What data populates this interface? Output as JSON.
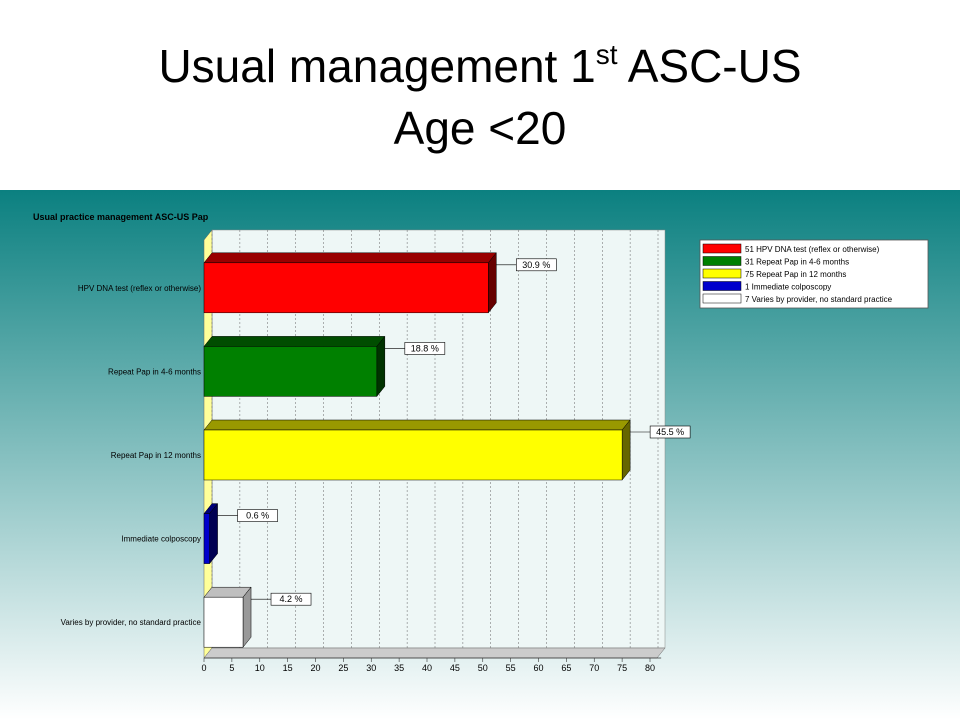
{
  "slide_title": {
    "line1": "Usual management 1",
    "sup": "st",
    "line1_end": " ASC-US",
    "line2": "Age <20"
  },
  "chart_data": {
    "type": "bar",
    "title": "Usual practice management ASC-US Pap",
    "categories": [
      "HPV DNA test (reflex or otherwise)",
      "Repeat Pap in 4-6 months",
      "Repeat Pap in 12 months",
      "Immediate colposcopy",
      "Varies by provider, no standard practice"
    ],
    "values": [
      51,
      31,
      75,
      1,
      7
    ],
    "value_labels": [
      "30.9 %",
      "18.8 %",
      "45.5 %",
      "0.6 %",
      "4.2 %"
    ],
    "colors": [
      "#ff0000",
      "#008000",
      "#ffff00",
      "#0000cc",
      "#ffffff"
    ],
    "legend": [
      "51 HPV DNA test (reflex or otherwise)",
      "31 Repeat Pap in 4-6 months",
      "75 Repeat Pap in 12 months",
      "1 Immediate colposcopy",
      "7 Varies by provider, no standard practice"
    ],
    "xlim": [
      0,
      82
    ],
    "xticks": [
      0,
      5,
      10,
      15,
      20,
      25,
      30,
      35,
      40,
      45,
      50,
      55,
      60,
      65,
      70,
      75,
      80
    ],
    "grid": true
  }
}
